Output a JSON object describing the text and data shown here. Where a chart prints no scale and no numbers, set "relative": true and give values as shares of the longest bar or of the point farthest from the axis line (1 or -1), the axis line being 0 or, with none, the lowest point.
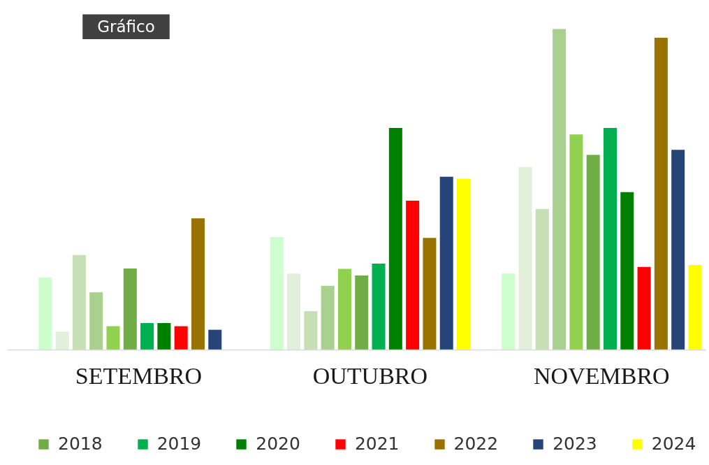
{
  "chart_data": {
    "type": "bar",
    "title": "Gráfico",
    "categories": [
      "SETEMBRO",
      "OUTUBRO",
      "NOVEMBRO"
    ],
    "relative": true,
    "grid": false,
    "legend": "bottom",
    "series": [
      {
        "color": "#ccffcc",
        "values": [
          0.226,
          0.352,
          0.238
        ]
      },
      {
        "color": "#e2efda",
        "values": [
          0.057,
          0.238,
          0.57
        ]
      },
      {
        "color": "#c6e0b4",
        "values": [
          0.296,
          0.121,
          0.439
        ]
      },
      {
        "color": "#a9d08e",
        "values": [
          0.18,
          0.2,
          1
        ]
      },
      {
        "color": "#92d050",
        "values": [
          0.074,
          0.253,
          0.672
        ]
      },
      {
        "name": "2018",
        "color": "#70ad47",
        "values": [
          0.254,
          0.232,
          0.608
        ]
      },
      {
        "name": "2019",
        "color": "#00b050",
        "values": [
          0.084,
          0.269,
          0.692
        ]
      },
      {
        "name": "2020",
        "color": "#008000",
        "values": [
          0.084,
          0.692,
          0.492
        ]
      },
      {
        "name": "2021",
        "color": "#ff0000",
        "values": [
          0.074,
          0.465,
          0.259
        ]
      },
      {
        "name": "2022",
        "color": "#997300",
        "values": [
          0.41,
          0.349,
          0.973
        ]
      },
      {
        "name": "2023",
        "color": "#264478",
        "values": [
          0.063,
          0.54,
          0.624
        ]
      },
      {
        "name": "2024",
        "color": "#ffff00",
        "values": [
          null,
          0.534,
          0.265
        ]
      }
    ]
  }
}
